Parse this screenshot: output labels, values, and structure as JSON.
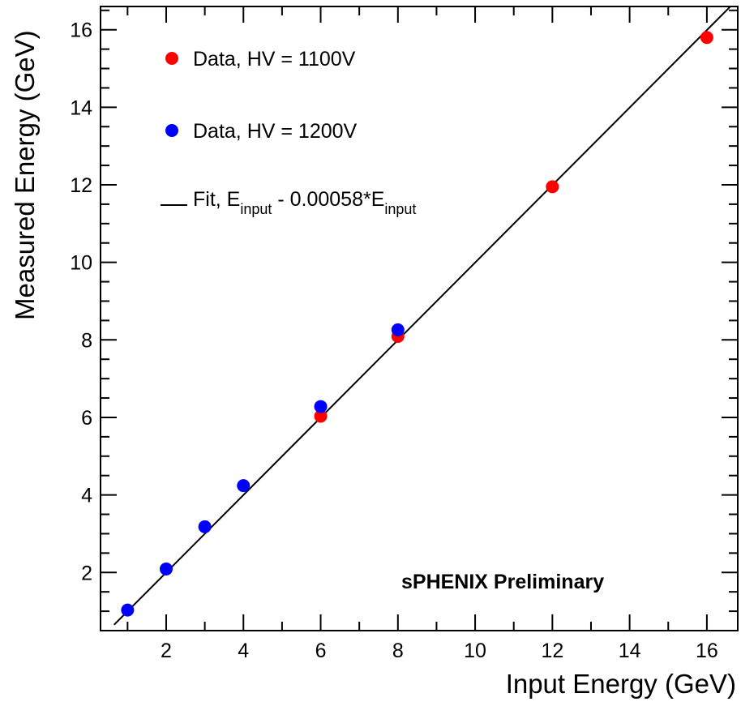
{
  "chart_data": {
    "type": "scatter",
    "title": "",
    "xlabel": "Input Energy (GeV)",
    "ylabel": "Measured Energy (GeV)",
    "xlim": [
      0.3,
      16.8
    ],
    "ylim": [
      0.5,
      16.6
    ],
    "xticks": [
      2,
      4,
      6,
      8,
      10,
      12,
      14,
      16
    ],
    "yticks": [
      2,
      4,
      6,
      8,
      10,
      12,
      14,
      16
    ],
    "grid": false,
    "legend_position": "top-left",
    "series": [
      {
        "name": "Data, HV = 1100V",
        "color": "#ff0000",
        "marker": "circle",
        "x": [
          6,
          8,
          12,
          16
        ],
        "y": [
          6.03,
          8.09,
          11.95,
          15.8
        ]
      },
      {
        "name": "Data, HV = 1200V",
        "color": "#0000ff",
        "marker": "circle",
        "x": [
          1,
          2,
          3,
          4,
          6,
          8
        ],
        "y": [
          1.03,
          2.09,
          3.18,
          4.24,
          6.28,
          8.26
        ]
      }
    ],
    "fit": {
      "legend_prefix": "Fit, E",
      "legend_sub1": "input",
      "legend_mid": " - 0.00058*E",
      "legend_sub2": "input",
      "color": "#000000",
      "x": [
        0.65,
        16.6
      ],
      "slope": 0.99942,
      "intercept": 0
    },
    "annotation": "sPHENIX Preliminary"
  }
}
